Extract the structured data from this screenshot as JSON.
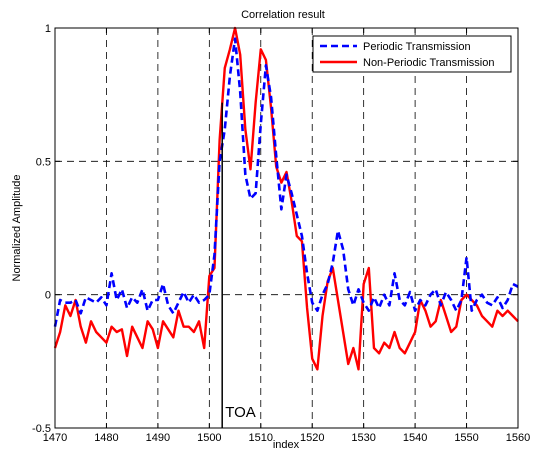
{
  "chart_data": {
    "type": "line",
    "title": "Correlation result",
    "xlabel": "index",
    "ylabel": "Normalized Amplitude",
    "xlim": [
      1470,
      1560
    ],
    "ylim": [
      -0.5,
      1
    ],
    "xticks": [
      1470,
      1480,
      1490,
      1500,
      1510,
      1520,
      1530,
      1540,
      1550,
      1560
    ],
    "xtick_labels": [
      "1470",
      "1480",
      "1490",
      "1500",
      "1510",
      "1520",
      "1530",
      "1540",
      "1550",
      "1560"
    ],
    "yticks": [
      -0.5,
      0,
      0.5,
      1
    ],
    "ytick_labels": [
      "-0.5",
      "0",
      "0.5",
      "1"
    ],
    "grid": true,
    "legend_position": "top-right",
    "series": [
      {
        "name": "Periodic Transmission",
        "color": "#0000ff",
        "style": "dashed",
        "x": [
          1470,
          1471,
          1472,
          1473,
          1474,
          1475,
          1476,
          1477,
          1478,
          1479,
          1480,
          1481,
          1482,
          1483,
          1484,
          1485,
          1486,
          1487,
          1488,
          1489,
          1490,
          1491,
          1492,
          1493,
          1494,
          1495,
          1496,
          1497,
          1498,
          1499,
          1500,
          1501,
          1502,
          1503,
          1504,
          1505,
          1506,
          1507,
          1508,
          1509,
          1510,
          1511,
          1512,
          1513,
          1514,
          1515,
          1516,
          1517,
          1518,
          1519,
          1520,
          1521,
          1522,
          1523,
          1524,
          1525,
          1526,
          1527,
          1528,
          1529,
          1530,
          1531,
          1532,
          1533,
          1534,
          1535,
          1536,
          1537,
          1538,
          1539,
          1540,
          1541,
          1542,
          1543,
          1544,
          1545,
          1546,
          1547,
          1548,
          1549,
          1550,
          1551,
          1552,
          1553,
          1554,
          1555,
          1556,
          1557,
          1558,
          1559,
          1560
        ],
        "y": [
          -0.12,
          -0.02,
          -0.03,
          -0.03,
          -0.02,
          -0.07,
          -0.01,
          -0.02,
          -0.03,
          -0.01,
          -0.04,
          0.08,
          -0.02,
          0.02,
          -0.05,
          -0.01,
          -0.03,
          0.02,
          -0.06,
          -0.02,
          -0.02,
          0.04,
          -0.04,
          -0.07,
          -0.03,
          0.01,
          -0.03,
          0.0,
          -0.03,
          -0.02,
          0.0,
          0.15,
          0.5,
          0.62,
          0.82,
          0.96,
          0.76,
          0.45,
          0.36,
          0.38,
          0.64,
          0.86,
          0.74,
          0.52,
          0.32,
          0.45,
          0.38,
          0.3,
          0.22,
          0.08,
          -0.03,
          -0.06,
          0.0,
          0.04,
          0.12,
          0.24,
          0.17,
          0.02,
          -0.04,
          0.02,
          -0.03,
          -0.06,
          -0.01,
          -0.05,
          0.0,
          -0.04,
          0.08,
          -0.02,
          -0.04,
          0.01,
          -0.06,
          -0.02,
          -0.04,
          0.0,
          0.02,
          -0.04,
          0.01,
          -0.02,
          -0.06,
          -0.02,
          0.14,
          -0.06,
          -0.02,
          0.0,
          -0.03,
          -0.04,
          -0.01,
          -0.05,
          -0.02,
          0.04,
          0.03
        ]
      },
      {
        "name": "Non-Periodic Transmission",
        "color": "#ff0000",
        "style": "solid",
        "x": [
          1470,
          1471,
          1472,
          1473,
          1474,
          1475,
          1476,
          1477,
          1478,
          1479,
          1480,
          1481,
          1482,
          1483,
          1484,
          1485,
          1486,
          1487,
          1488,
          1489,
          1490,
          1491,
          1492,
          1493,
          1494,
          1495,
          1496,
          1497,
          1498,
          1499,
          1500,
          1501,
          1502,
          1503,
          1504,
          1505,
          1506,
          1507,
          1508,
          1509,
          1510,
          1511,
          1512,
          1513,
          1514,
          1515,
          1516,
          1517,
          1518,
          1519,
          1520,
          1521,
          1522,
          1523,
          1524,
          1525,
          1526,
          1527,
          1528,
          1529,
          1530,
          1531,
          1532,
          1533,
          1534,
          1535,
          1536,
          1537,
          1538,
          1539,
          1540,
          1541,
          1542,
          1543,
          1544,
          1545,
          1546,
          1547,
          1548,
          1549,
          1550,
          1551,
          1552,
          1553,
          1554,
          1555,
          1556,
          1557,
          1558,
          1559,
          1560
        ],
        "y": [
          -0.2,
          -0.14,
          -0.04,
          -0.08,
          -0.02,
          -0.12,
          -0.18,
          -0.1,
          -0.14,
          -0.16,
          -0.18,
          -0.12,
          -0.14,
          -0.13,
          -0.23,
          -0.12,
          -0.16,
          -0.2,
          -0.1,
          -0.13,
          -0.2,
          -0.1,
          -0.13,
          -0.16,
          -0.06,
          -0.12,
          -0.12,
          -0.14,
          -0.1,
          -0.2,
          0.07,
          0.1,
          0.58,
          0.85,
          0.92,
          1.0,
          0.9,
          0.62,
          0.47,
          0.72,
          0.92,
          0.88,
          0.7,
          0.48,
          0.42,
          0.46,
          0.35,
          0.22,
          0.2,
          -0.05,
          -0.24,
          -0.28,
          -0.08,
          0.05,
          0.1,
          -0.02,
          -0.14,
          -0.26,
          -0.2,
          -0.28,
          0.04,
          0.1,
          -0.2,
          -0.22,
          -0.18,
          -0.2,
          -0.14,
          -0.2,
          -0.22,
          -0.18,
          -0.14,
          -0.02,
          -0.06,
          -0.12,
          -0.1,
          -0.02,
          -0.08,
          -0.14,
          -0.12,
          -0.02,
          0.0,
          -0.02,
          -0.04,
          -0.08,
          -0.1,
          -0.12,
          -0.06,
          -0.08,
          -0.06,
          -0.08,
          -0.1
        ]
      }
    ],
    "annotations": [
      {
        "text": "TOA",
        "x": 1502.5,
        "y_from": -0.5,
        "y_to": 0.72
      }
    ]
  }
}
